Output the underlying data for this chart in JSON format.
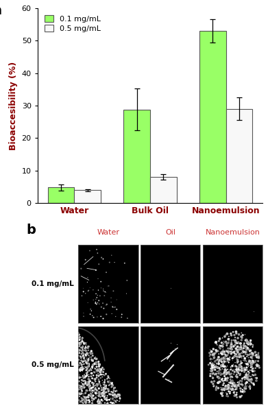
{
  "bar_categories": [
    "Water",
    "Bulk Oil",
    "Nanoemulsion"
  ],
  "bar_values_01": [
    4.8,
    28.8,
    53.0
  ],
  "bar_values_05": [
    4.0,
    8.0,
    29.0
  ],
  "bar_errors_01": [
    1.0,
    6.5,
    3.5
  ],
  "bar_errors_05": [
    0.3,
    0.8,
    3.5
  ],
  "bar_color_01": "#99ff66",
  "bar_color_05": "#f8f8f8",
  "bar_edgecolor": "#555555",
  "ylabel": "Bioaccesibility (%)",
  "ylim": [
    0,
    60
  ],
  "yticks": [
    0,
    10,
    20,
    30,
    40,
    50,
    60
  ],
  "legend_labels": [
    "0.1 mg/mL",
    "0.5 mg/mL"
  ],
  "xticklabel_color": "#8b0000",
  "ylabel_color": "#8b0000",
  "panel_a_label": "a",
  "panel_b_label": "b",
  "col_headers": [
    "Water",
    "Oil",
    "Nanoemulsion"
  ],
  "col_header_color": "#cc3333",
  "row_labels": [
    "0.1 mg/mL",
    "0.5 mg/mL"
  ],
  "row_label_color": "#000000"
}
